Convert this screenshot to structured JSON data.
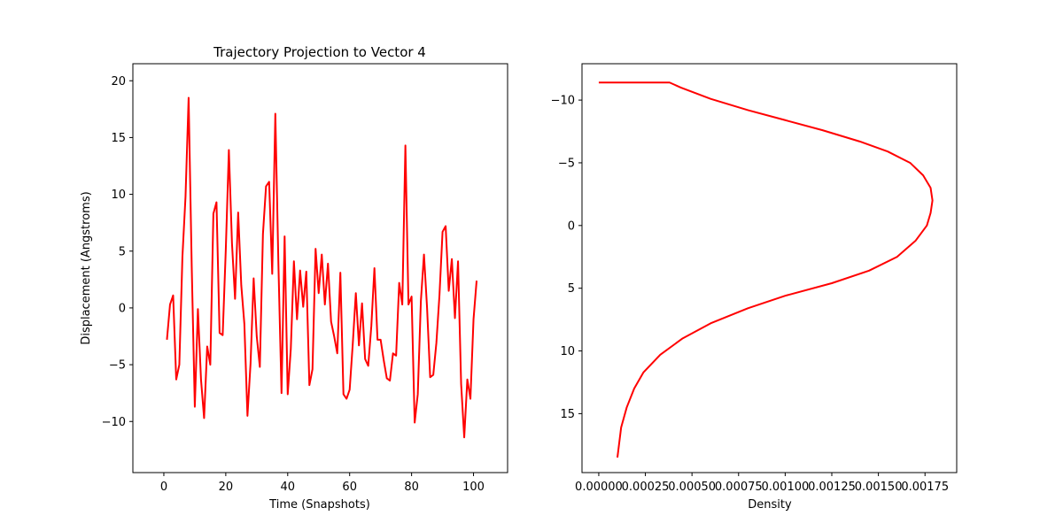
{
  "chart_data": [
    {
      "type": "line",
      "title": "Trajectory Projection to Vector 4",
      "xlabel": "Time (Snapshots)",
      "ylabel": "Displacement (Angstroms)",
      "xlim": [
        -10,
        111
      ],
      "ylim": [
        -14.5,
        21.5
      ],
      "xticks": [
        0,
        20,
        40,
        60,
        80,
        100
      ],
      "yticks": [
        -10,
        -5,
        0,
        5,
        10,
        15,
        20
      ],
      "line_color": "#ff0000",
      "series": [
        {
          "x": [
            1,
            2,
            3,
            4,
            5,
            6,
            7,
            8,
            9,
            10,
            11,
            12,
            13,
            14,
            15,
            16,
            17,
            18,
            19,
            20,
            21,
            22,
            23,
            24,
            25,
            26,
            27,
            28,
            29,
            30,
            31,
            32,
            33,
            34,
            35,
            36,
            37,
            38,
            39,
            40,
            41,
            42,
            43,
            44,
            45,
            46,
            47,
            48,
            49,
            50,
            51,
            52,
            53,
            54,
            55,
            56,
            57,
            58,
            59,
            60,
            61,
            62,
            63,
            64,
            65,
            66,
            67,
            68,
            69,
            70,
            71,
            72,
            73,
            74,
            75,
            76,
            77,
            78,
            79,
            80,
            81,
            82,
            83,
            84,
            85,
            86,
            87,
            88,
            89,
            90,
            91,
            92,
            93,
            94,
            95,
            96,
            97,
            98,
            99,
            100,
            101
          ],
          "y": [
            -2.8,
            0.3,
            1.1,
            -6.3,
            -5.0,
            4.5,
            9.8,
            18.5,
            3.7,
            -8.7,
            -0.1,
            -6.3,
            -9.7,
            -3.4,
            -5.0,
            8.3,
            9.3,
            -2.2,
            -2.4,
            5.1,
            13.9,
            5.7,
            0.8,
            8.4,
            2.0,
            -1.4,
            -9.5,
            -4.9,
            2.6,
            -2.5,
            -5.2,
            6.5,
            10.7,
            11.1,
            3.0,
            17.1,
            3.8,
            -7.5,
            6.3,
            -7.6,
            -3.6,
            4.1,
            -1.0,
            3.3,
            0.1,
            3.2,
            -6.8,
            -5.4,
            5.2,
            1.3,
            4.7,
            0.3,
            3.9,
            -1.2,
            -2.5,
            -4.0,
            3.1,
            -7.6,
            -8.0,
            -7.2,
            -3.2,
            1.3,
            -3.3,
            0.4,
            -4.5,
            -5.1,
            -1.6,
            3.5,
            -2.8,
            -2.8,
            -4.6,
            -6.2,
            -6.4,
            -4.0,
            -4.2,
            2.2,
            0.3,
            14.3,
            0.3,
            1.0,
            -10.1,
            -7.6,
            0.6,
            4.7,
            0.0,
            -6.1,
            -5.9,
            -3.1,
            1.1,
            6.7,
            7.2,
            1.5,
            4.3,
            -0.9,
            4.1,
            -6.7,
            -11.4,
            -6.3,
            -8.0,
            -1.0,
            2.4
          ]
        }
      ]
    },
    {
      "type": "line",
      "title": "",
      "xlabel": "Density",
      "ylabel": "",
      "xlim": [
        -9e-05,
        0.00192
      ],
      "ylim": [
        -12.9,
        19.7
      ],
      "y_inverted": true,
      "xticks": [
        0.0,
        0.00025,
        0.0005,
        0.00075,
        0.001,
        0.00125,
        0.0015,
        0.00175
      ],
      "xtick_labels": [
        "0.00000",
        "0.00025",
        "0.00050",
        "0.00075",
        "0.00100",
        "0.00125",
        "0.00150",
        "0.00175"
      ],
      "yticks": [
        -10,
        -5,
        0,
        5,
        10,
        15
      ],
      "ytick_labels": [
        "−10",
        "−5",
        "0",
        "5",
        "10",
        "15"
      ],
      "line_color": "#ff0000",
      "series": [
        {
          "x": [
            0.0,
            0.00038,
            0.00044,
            0.0006,
            0.0008,
            0.001,
            0.0012,
            0.0014,
            0.00155,
            0.00167,
            0.00174,
            0.00178,
            0.00179,
            0.00178,
            0.00176,
            0.0017,
            0.0016,
            0.00145,
            0.00125,
            0.001,
            0.0008,
            0.0006,
            0.00045,
            0.00033,
            0.00024,
            0.00019,
            0.00015,
            0.00012,
            0.0001
          ],
          "y": [
            -11.4,
            -11.4,
            -11.0,
            -10.1,
            -9.2,
            -8.4,
            -7.6,
            -6.7,
            -5.9,
            -5.0,
            -4.0,
            -3.0,
            -2.0,
            -1.0,
            0.0,
            1.2,
            2.5,
            3.6,
            4.6,
            5.6,
            6.6,
            7.8,
            9.0,
            10.3,
            11.7,
            13.0,
            14.5,
            16.1,
            18.5
          ]
        }
      ]
    }
  ]
}
